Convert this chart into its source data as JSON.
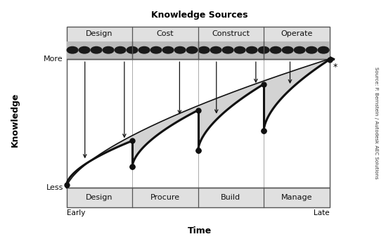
{
  "title": "Knowledge Sources",
  "xlabel": "Time",
  "ylabel": "Knowledge",
  "xlabel_early": "Early",
  "xlabel_late": "Late",
  "ylabel_more": "More",
  "ylabel_less": "Less",
  "top_labels": [
    "Design",
    "Cost",
    "Construct",
    "Operate"
  ],
  "bottom_labels": [
    "Design",
    "Procure",
    "Build",
    "Manage"
  ],
  "phase_boundaries": [
    0.0,
    0.25,
    0.5,
    0.75,
    1.0
  ],
  "source_text": "Source: P. Bernstein / Autodesk AEC Solutions",
  "num_dots": 22,
  "background_color": "#ffffff",
  "header_bg": "#e8e8e8",
  "dot_color": "#1a1a1a",
  "curve_color": "#111111",
  "fill_color": "#cccccc",
  "arrow_color": "#111111"
}
